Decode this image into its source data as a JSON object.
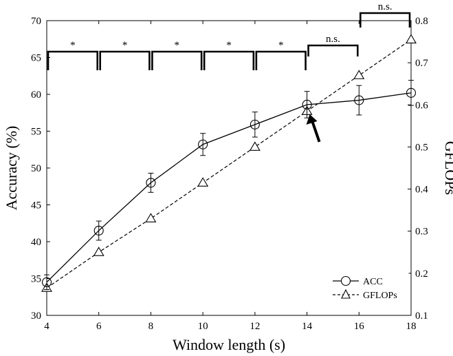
{
  "chart_data": {
    "type": "line",
    "title": "",
    "xlabel": "Window length (s)",
    "ylabel_left": "Accuracy (%)",
    "ylabel_right": "GFLOPs",
    "xlim": [
      4,
      18
    ],
    "ylim_left": [
      30,
      70
    ],
    "ylim_right": [
      0.1,
      0.8
    ],
    "x_ticks": [
      4,
      6,
      8,
      10,
      12,
      14,
      16,
      18
    ],
    "y_ticks_left": [
      30,
      35,
      40,
      45,
      50,
      55,
      60,
      65,
      70
    ],
    "y_ticks_right": [
      0.1,
      0.2,
      0.3,
      0.4,
      0.5,
      0.6,
      0.7,
      0.8
    ],
    "x_tick_labels": [
      "4",
      "6",
      "8",
      "10",
      "12",
      "14",
      "16",
      "18"
    ],
    "y_tick_labels_left": [
      "30",
      "35",
      "40",
      "45",
      "50",
      "55",
      "60",
      "65",
      "70"
    ],
    "y_tick_labels_right": [
      "0.1",
      "0.2",
      "0.3",
      "0.4",
      "0.5",
      "0.6",
      "0.7",
      "0.8"
    ],
    "grid": false,
    "legend_position": "bottom-right",
    "series": [
      {
        "name": "ACC",
        "axis": "left",
        "marker": "circle",
        "line_style": "solid",
        "x": [
          4,
          6,
          8,
          10,
          12,
          14,
          16,
          18
        ],
        "y": [
          34.5,
          41.5,
          48.0,
          53.2,
          55.9,
          58.6,
          59.2,
          60.2
        ],
        "error": [
          1.0,
          1.3,
          1.3,
          1.5,
          1.7,
          1.8,
          2.0,
          1.7
        ]
      },
      {
        "name": "GFLOPs",
        "axis": "right",
        "marker": "triangle",
        "line_style": "dashed",
        "x": [
          4,
          6,
          8,
          10,
          12,
          14,
          16,
          18
        ],
        "y": [
          0.165,
          0.25,
          0.33,
          0.415,
          0.5,
          0.585,
          0.67,
          0.755
        ]
      }
    ],
    "significance": [
      {
        "x_start": 4,
        "x_end": 6,
        "label": "*"
      },
      {
        "x_start": 6,
        "x_end": 8,
        "label": "*"
      },
      {
        "x_start": 8,
        "x_end": 10,
        "label": "*"
      },
      {
        "x_start": 10,
        "x_end": 12,
        "label": "*"
      },
      {
        "x_start": 12,
        "x_end": 14,
        "label": "*"
      },
      {
        "x_start": 14,
        "x_end": 16,
        "label": "n.s."
      },
      {
        "x_start": 16,
        "x_end": 18,
        "label": "n.s."
      }
    ],
    "annotation_arrow": {
      "x": 14,
      "y": 58.6
    }
  }
}
